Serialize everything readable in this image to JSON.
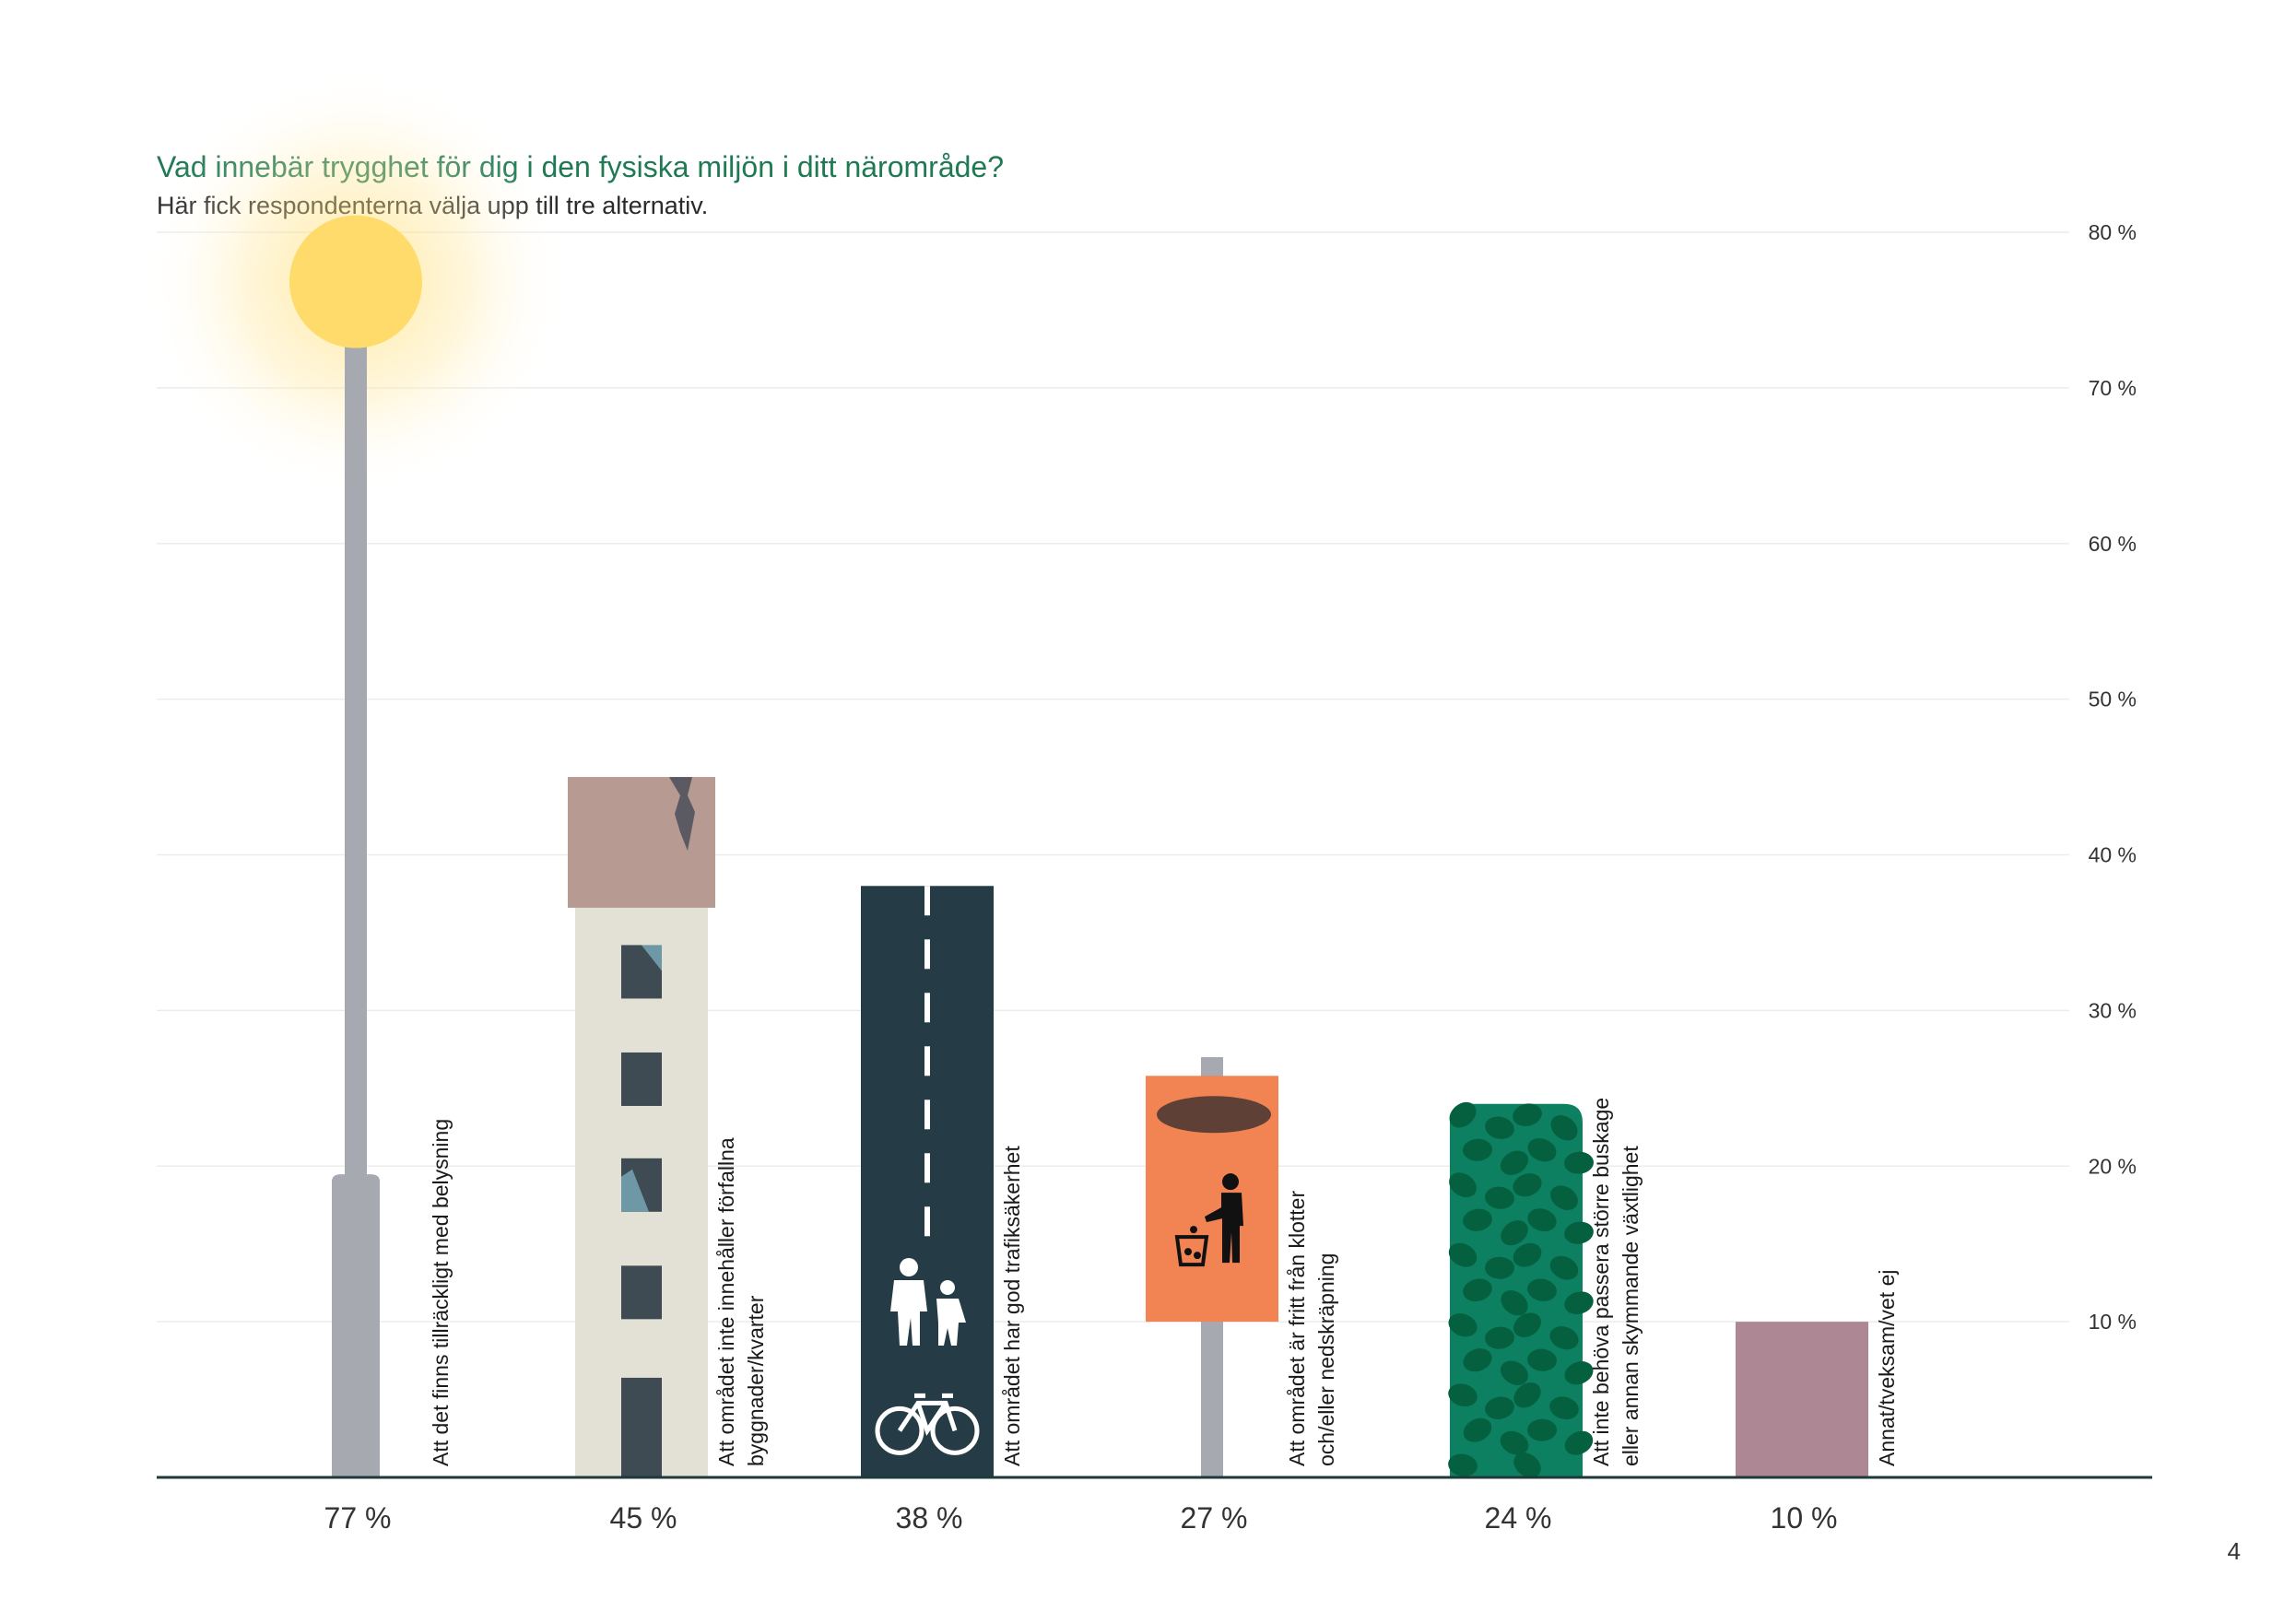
{
  "page": {
    "number": "4"
  },
  "chart_data": {
    "type": "bar",
    "title": "Vad innebär trygghet för dig i den fysiska miljön i ditt närområde?",
    "subtitle": "Här fick respondenterna välja upp till tre alternativ.",
    "unit": "%",
    "ylim": [
      0,
      80
    ],
    "yticks": [
      "10 %",
      "20 %",
      "30 %",
      "40 %",
      "50 %",
      "60 %",
      "70 %",
      "80 %"
    ],
    "grid": true,
    "categories": [
      "Att det finns tillräckligt med belysning",
      "Att området inte innehåller förfallna byggnader/kvarter",
      "Att området har god trafiksäkerhet",
      "Att området är fritt från klotter och/eller nedskräpning",
      "Att inte behöva passera större buskage eller annan skymmande växtlighet",
      "Annat/tveksam/vet ej"
    ],
    "values": [
      77,
      45,
      38,
      27,
      24,
      10
    ],
    "value_labels": [
      "77 %",
      "45 %",
      "38 %",
      "27 %",
      "24 %",
      "10 %"
    ],
    "category_label_lines": [
      [
        "Att det finns tillräckligt med belysning"
      ],
      [
        "Att området inte innehåller förfallna",
        "byggnader/kvarter"
      ],
      [
        "Att området har god trafiksäkerhet"
      ],
      [
        "Att området är fritt från klotter",
        "och/eller nedskräpning"
      ],
      [
        "Att inte behöva passera större buskage",
        "eller annan skymmande växtlighet"
      ],
      [
        "Annat/tveksam/vet ej"
      ]
    ],
    "illustrations": [
      "street-lamp",
      "building",
      "road",
      "trash-sign",
      "hedge",
      "plain-bar"
    ],
    "colors": {
      "title": "#1f7a54",
      "lamp_pole": "#a6a9af",
      "lamp_light": "#ffdb6b",
      "building_wall": "#e3e0d6",
      "building_roof": "#b79a92",
      "building_window": "#3e4b52",
      "window_glass": "#6f98a6",
      "road": "#253c46",
      "sign": "#f28454",
      "sign_hole": "#5e4036",
      "hedge": "#0c8060",
      "hedge_leaf": "#05603f",
      "other": "#ad8794",
      "axis": "#1e3a3a",
      "grid": "#ececec"
    }
  }
}
